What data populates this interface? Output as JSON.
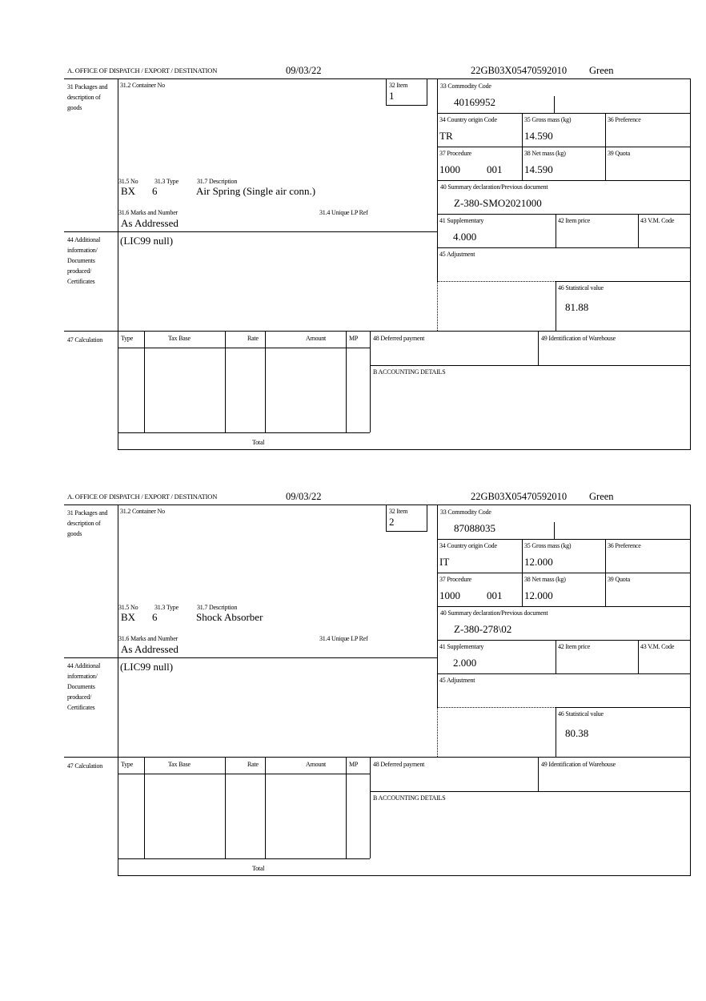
{
  "labels": {
    "office": "A.  OFFICE OF DISPATCH / EXPORT / DESTINATION",
    "packages": "31 Packages and description of goods",
    "container": "31.2 Container No",
    "item": "32 Item",
    "commodity": "33 Commodity Code",
    "country": "34 Country origin Code",
    "gross": "35 Gross mass (kg)",
    "preference": "36 Preference",
    "procedure": "37 Procedure",
    "net": "38 Net mass (kg)",
    "quota": "39 Quota",
    "summary": "40 Summary declaration/Previous document",
    "no": "31.5 No",
    "type": "31.3 Type",
    "description": "31.7 Description",
    "marks": "31.6 Marks and Number",
    "unique_ref": "31.4 Unique LP Ref",
    "supplementary": "41 Supplementary",
    "item_price": "42 Item price",
    "vm_code": "43 V.M. Code",
    "additional": "44 Additional information/ Documents produced/ Certificates",
    "adjustment": "45 Adjustment",
    "statistical": "46 Statistical value",
    "calculation": "47 Calculation",
    "calc_type": "Type",
    "tax_base": "Tax Base",
    "rate": "Rate",
    "amount": "Amount",
    "mp": "MP",
    "deferred": "48 Deferred payment",
    "warehouse": "49 Identification of Warehouse",
    "accounting": "B ACCOUNTING DETAILS",
    "total": "Total"
  },
  "items": [
    {
      "date": "09/03/22",
      "reference": "22GB03X05470592010",
      "route": "Green",
      "item_no": "1",
      "commodity_code": "40169952",
      "country_origin": "TR",
      "gross_mass": "14.590",
      "procedure_a": "1000",
      "procedure_b": "001",
      "net_mass": "14.590",
      "previous_document": "Z-380-SMO2021000",
      "pkg_kind": "BX",
      "pkg_count": "6",
      "description": "Air Spring (Single air conn.)",
      "marks": "As Addressed",
      "supplementary": "4.000",
      "additional_info": "(LIC99 null)",
      "statistical_value": "81.88"
    },
    {
      "date": "09/03/22",
      "reference": "22GB03X05470592010",
      "route": "Green",
      "item_no": "2",
      "commodity_code": "87088035",
      "country_origin": "IT",
      "gross_mass": "12.000",
      "procedure_a": "1000",
      "procedure_b": "001",
      "net_mass": "12.000",
      "previous_document": "Z-380-278\\02",
      "pkg_kind": "BX",
      "pkg_count": "6",
      "description": "Shock Absorber",
      "marks": "As Addressed",
      "supplementary": "2.000",
      "additional_info": "(LIC99 null)",
      "statistical_value": "80.38"
    }
  ]
}
